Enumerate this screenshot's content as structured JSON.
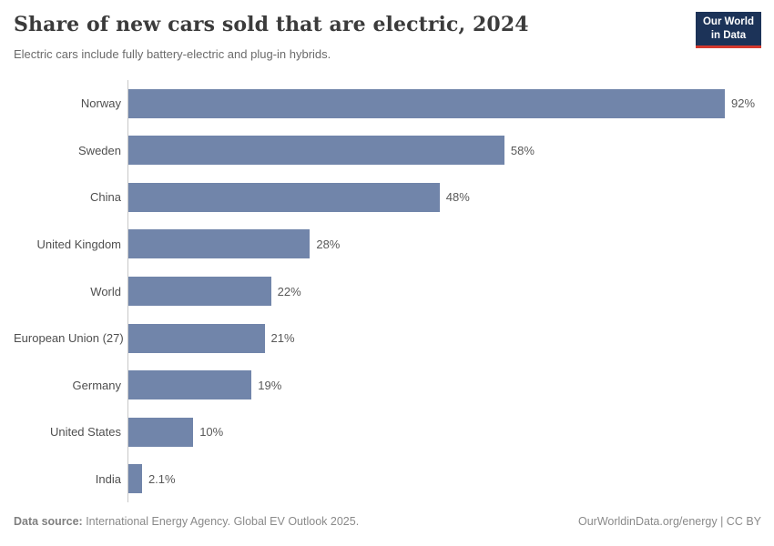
{
  "header": {
    "title": "Share of new cars sold that are electric, 2024",
    "subtitle": "Electric cars include fully battery-electric and plug-in hybrids."
  },
  "logo": {
    "line1": "Our World",
    "line2": "in Data",
    "background_color": "#1c3358",
    "accent_color": "#d4392d"
  },
  "chart_data": {
    "type": "bar",
    "orientation": "horizontal",
    "title": "Share of new cars sold that are electric, 2024",
    "subtitle": "Electric cars include fully battery-electric and plug-in hybrids.",
    "categories": [
      "Norway",
      "Sweden",
      "China",
      "United Kingdom",
      "World",
      "European Union (27)",
      "Germany",
      "United States",
      "India"
    ],
    "values": [
      92,
      58,
      48,
      28,
      22,
      21,
      19,
      10,
      2.1
    ],
    "value_labels": [
      "92%",
      "58%",
      "48%",
      "28%",
      "22%",
      "21%",
      "19%",
      "10%",
      "2.1%"
    ],
    "unit": "%",
    "xlim": [
      0,
      92
    ],
    "grid": false,
    "legend": false,
    "bar_color": "#7185aa"
  },
  "footer": {
    "source_label": "Data source:",
    "source_text": " International Energy Agency. Global EV Outlook 2025.",
    "right_text": "OurWorldinData.org/energy | CC BY"
  }
}
